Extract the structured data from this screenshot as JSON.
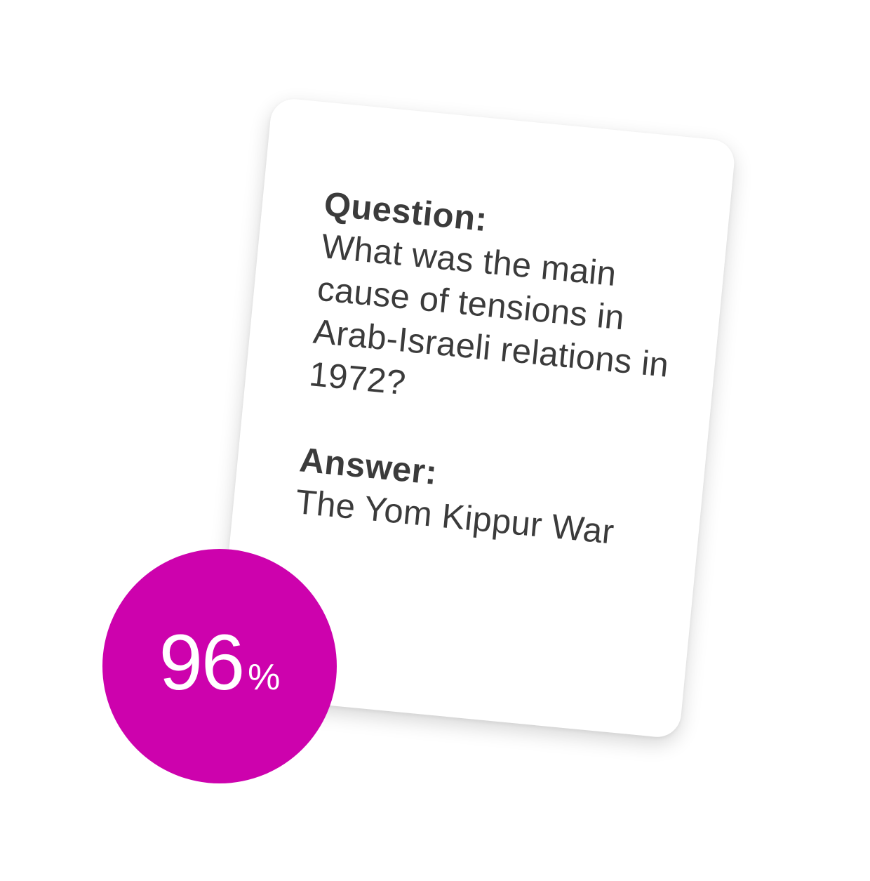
{
  "card": {
    "question_label": "Question:",
    "question_text": "What was the main cause of tensions in Arab-Israeli relations in 1972?",
    "answer_label": "Answer:",
    "answer_text": "The Yom Kippur War"
  },
  "badge": {
    "value": "96",
    "unit": "%",
    "color": "#cd02ad"
  }
}
